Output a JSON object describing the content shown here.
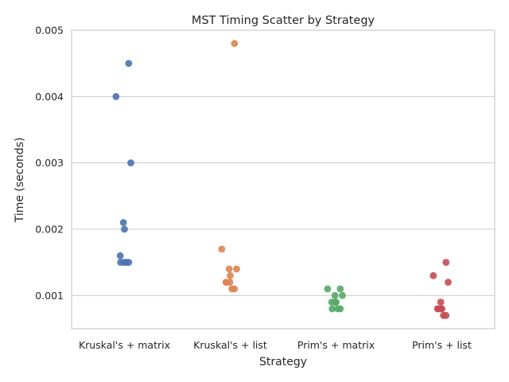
{
  "chart_data": {
    "type": "scatter",
    "title": "MST Timing Scatter by Strategy",
    "xlabel": "Strategy",
    "ylabel": "Time (seconds)",
    "categories": [
      "Kruskal's + matrix",
      "Kruskal's + list",
      "Prim's + matrix",
      "Prim's + list"
    ],
    "ylim": [
      0.0005,
      0.005
    ],
    "yticks": [
      "0.001",
      "0.002",
      "0.003",
      "0.004",
      "0.005"
    ],
    "grid": true,
    "series": [
      {
        "category": "Kruskal's + matrix",
        "color": "#4c72b0",
        "values": [
          0.0045,
          0.004,
          0.003,
          0.0021,
          0.002,
          0.0016,
          0.0015,
          0.0015,
          0.0015,
          0.0015
        ]
      },
      {
        "category": "Kruskal's + list",
        "color": "#dd8452",
        "values": [
          0.0048,
          0.0017,
          0.0014,
          0.0014,
          0.0013,
          0.0012,
          0.0012,
          0.0012,
          0.0011,
          0.0011
        ]
      },
      {
        "category": "Prim's + matrix",
        "color": "#55a868",
        "values": [
          0.0011,
          0.0011,
          0.001,
          0.001,
          0.0009,
          0.0009,
          0.0009,
          0.0008,
          0.0008,
          0.0008
        ]
      },
      {
        "category": "Prim's + list",
        "color": "#c44e52",
        "values": [
          0.0015,
          0.0013,
          0.0012,
          0.0009,
          0.0008,
          0.0008,
          0.0008,
          0.0008,
          0.0007,
          0.0007
        ]
      }
    ]
  }
}
